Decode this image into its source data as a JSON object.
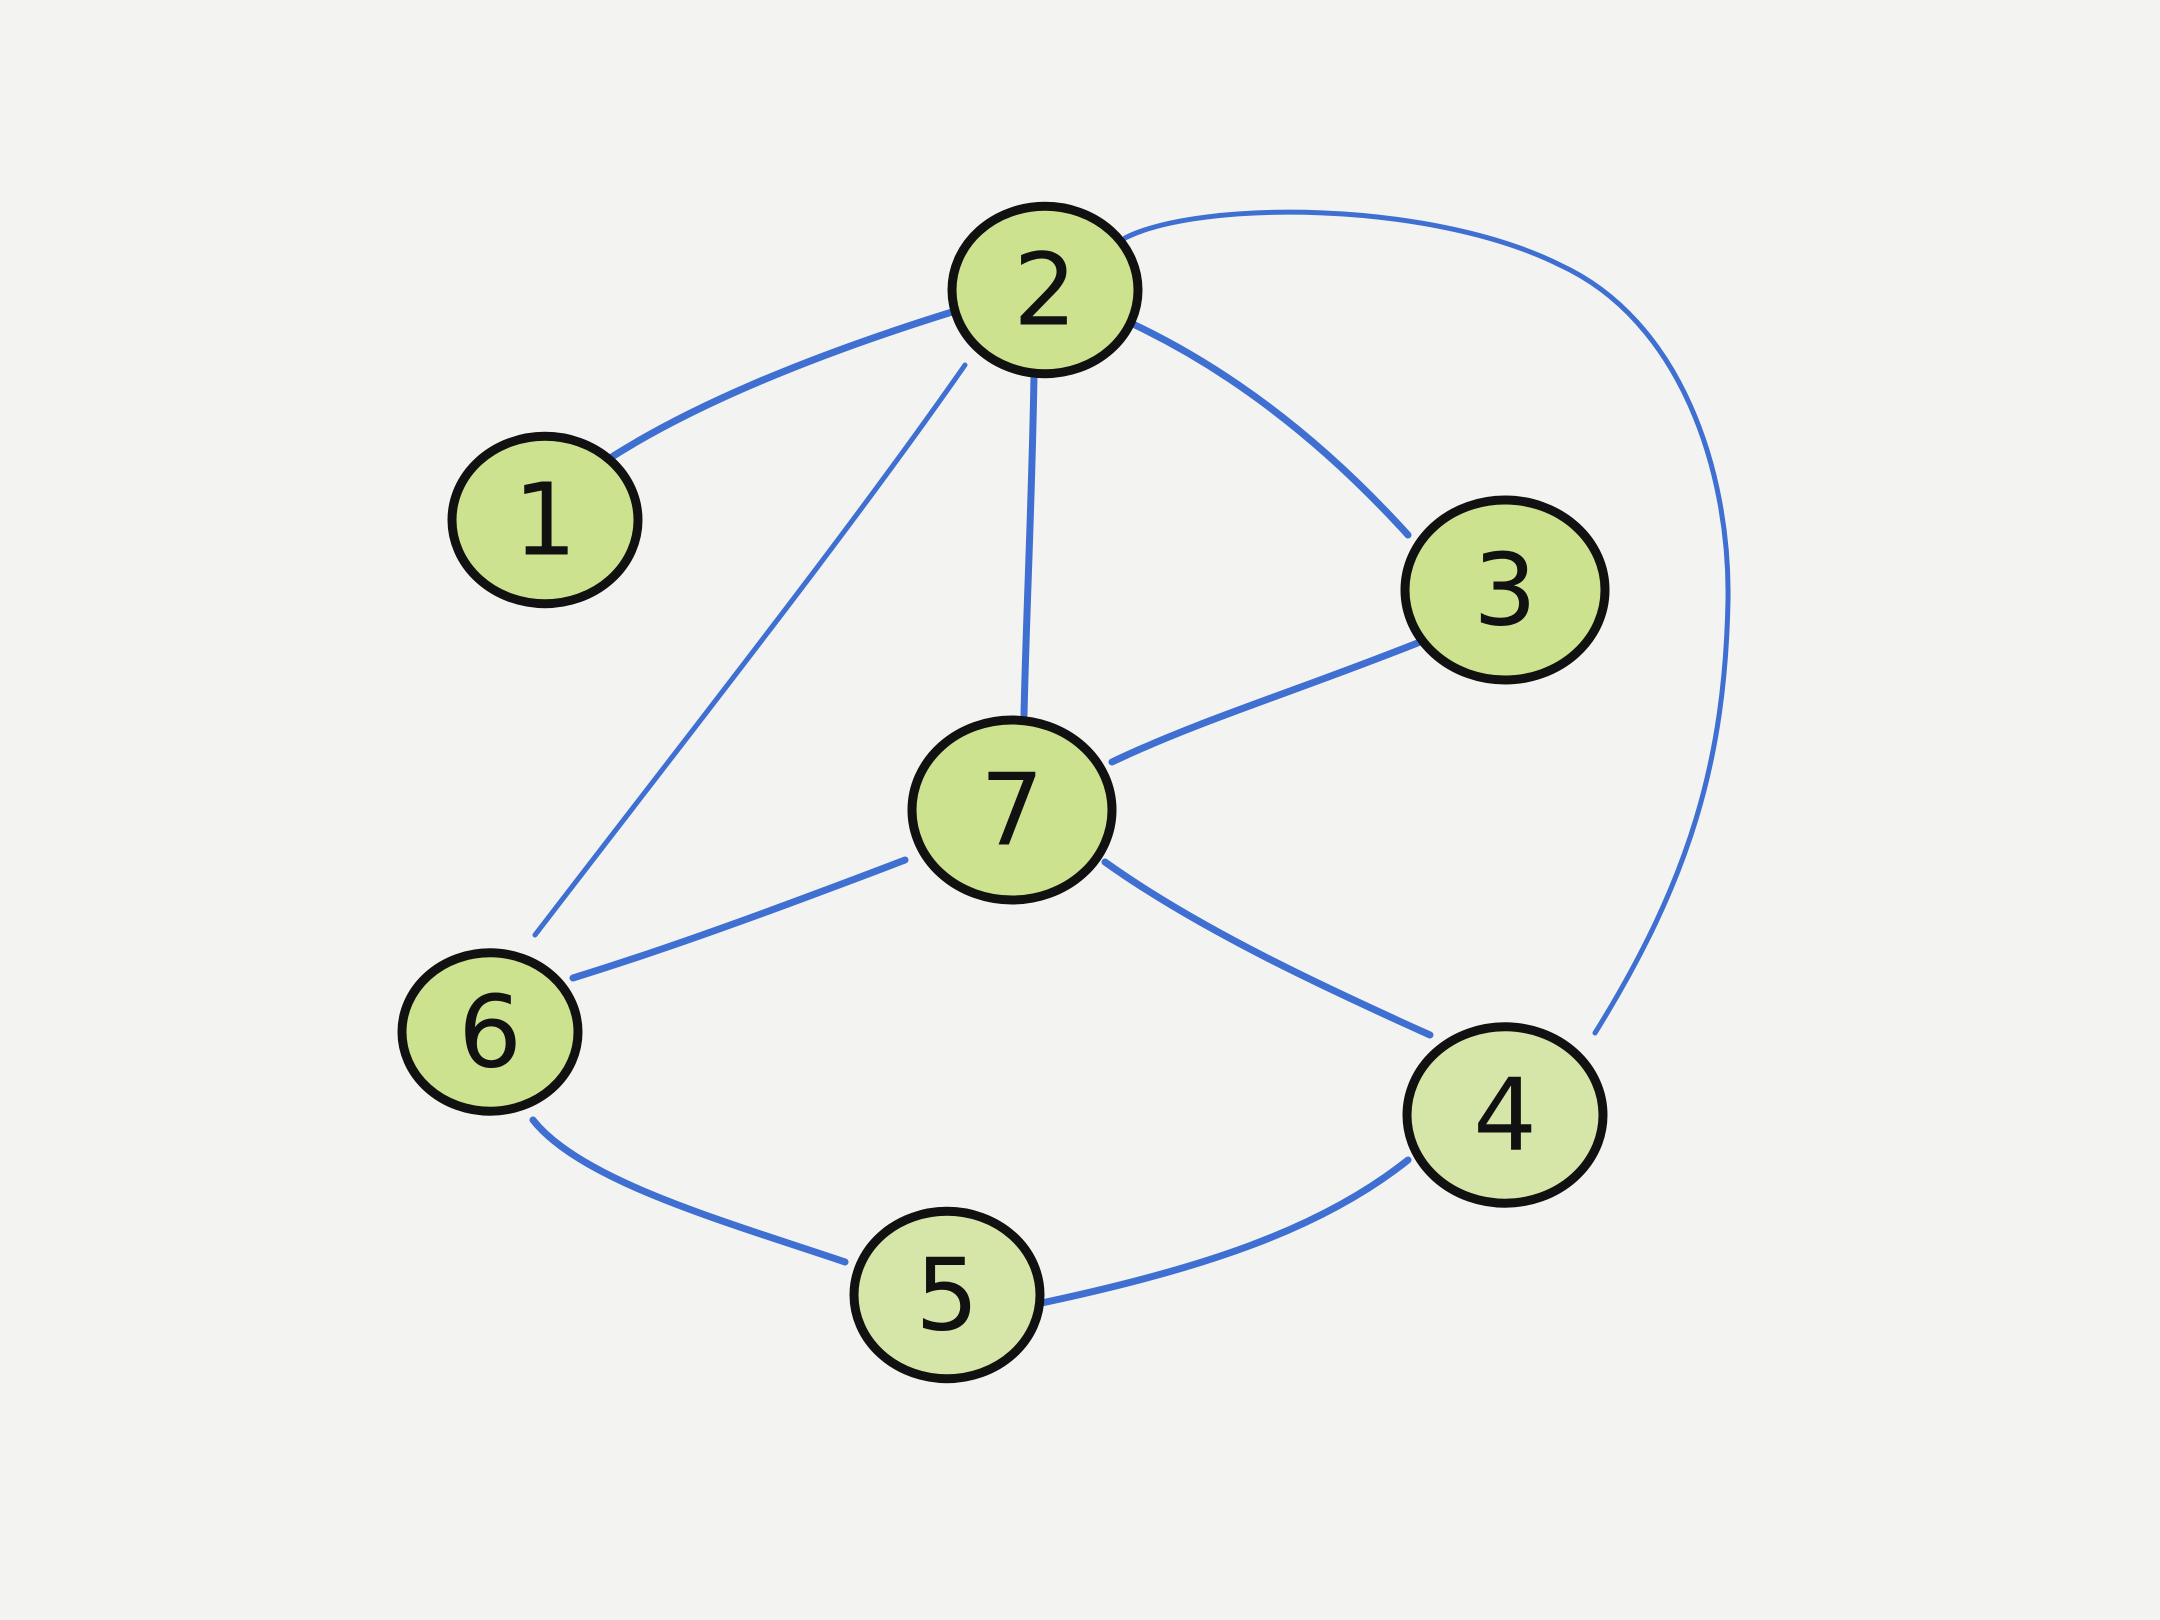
{
  "graph": {
    "colors": {
      "background": "#f3f3f2",
      "edge": "#3f6fd1",
      "node_fill": "#cde28f",
      "node_fill_light": "#d6e6a9",
      "node_outline": "#111111",
      "label": "#111111"
    },
    "nodes": [
      {
        "id": "1",
        "label": "1"
      },
      {
        "id": "2",
        "label": "2"
      },
      {
        "id": "3",
        "label": "3"
      },
      {
        "id": "4",
        "label": "4"
      },
      {
        "id": "5",
        "label": "5"
      },
      {
        "id": "6",
        "label": "6"
      },
      {
        "id": "7",
        "label": "7"
      }
    ],
    "edges": [
      {
        "from": "1",
        "to": "2"
      },
      {
        "from": "2",
        "to": "3"
      },
      {
        "from": "2",
        "to": "7"
      },
      {
        "from": "2",
        "to": "6"
      },
      {
        "from": "2",
        "to": "4"
      },
      {
        "from": "3",
        "to": "7"
      },
      {
        "from": "7",
        "to": "6"
      },
      {
        "from": "7",
        "to": "4"
      },
      {
        "from": "6",
        "to": "5"
      },
      {
        "from": "5",
        "to": "4"
      }
    ]
  }
}
